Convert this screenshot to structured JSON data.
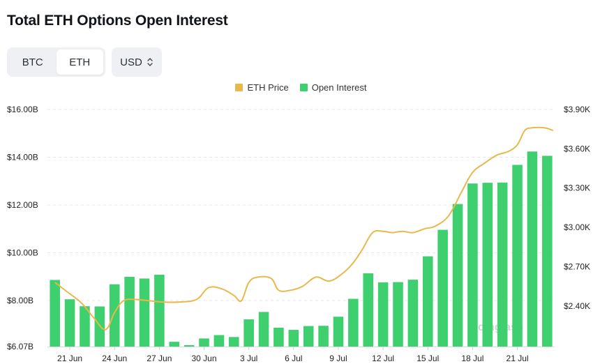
{
  "title": "Total ETH Options Open Interest",
  "asset_toggle": {
    "options": [
      "BTC",
      "ETH"
    ],
    "selected": "ETH"
  },
  "currency_select": {
    "value": "USD"
  },
  "legend": [
    {
      "label": "ETH Price",
      "color": "#e8b94a"
    },
    {
      "label": "Open Interest",
      "color": "#3ecf6e"
    }
  ],
  "watermark": "coinglass",
  "chart_data": {
    "type": "bar",
    "x_tick_labels": [
      "21 Jun",
      "24 Jun",
      "27 Jun",
      "30 Jun",
      "3 Jul",
      "6 Jul",
      "9 Jul",
      "12 Jul",
      "15 Jul",
      "18 Jul",
      "21 Jul"
    ],
    "x_tick_indices": [
      1,
      4,
      7,
      10,
      13,
      16,
      19,
      22,
      25,
      28,
      31
    ],
    "y_left": {
      "ticks": [
        6.07,
        8,
        10,
        12,
        14,
        16
      ],
      "tick_labels": [
        "$6.07B",
        "$8.00B",
        "$10.00B",
        "$12.00B",
        "$14.00B",
        "$16.00B"
      ],
      "range": [
        6.07,
        16
      ]
    },
    "y_right": {
      "ticks": [
        2.4,
        2.7,
        3.0,
        3.3,
        3.6,
        3.9
      ],
      "tick_labels": [
        "$2.40K",
        "$2.70K",
        "$3.00K",
        "$3.30K",
        "$3.60K",
        "$3.90K"
      ],
      "range": [
        2.09,
        3.9
      ]
    },
    "series": [
      {
        "name": "Open Interest",
        "axis": "left",
        "kind": "bar",
        "color": "#3ecf6e",
        "values": [
          8.86,
          8.05,
          7.76,
          7.75,
          8.68,
          8.99,
          8.92,
          9.08,
          6.27,
          6.13,
          6.41,
          6.55,
          6.47,
          7.21,
          7.52,
          6.86,
          6.77,
          6.93,
          6.94,
          7.32,
          8.07,
          9.14,
          8.76,
          8.77,
          8.87,
          9.85,
          10.96,
          12.04,
          12.9,
          12.93,
          12.94,
          13.68,
          14.24,
          14.06
        ]
      },
      {
        "name": "ETH Price",
        "axis": "right",
        "kind": "line",
        "color": "#e8b94a",
        "points": [
          [
            0,
            2.58
          ],
          [
            0.8,
            2.51
          ],
          [
            1.8,
            2.42
          ],
          [
            2.6,
            2.31
          ],
          [
            3.4,
            2.22
          ],
          [
            4,
            2.35
          ],
          [
            4.6,
            2.44
          ],
          [
            5.4,
            2.45
          ],
          [
            6.3,
            2.44
          ],
          [
            7.2,
            2.43
          ],
          [
            8.3,
            2.43
          ],
          [
            9.5,
            2.45
          ],
          [
            10.3,
            2.54
          ],
          [
            11.2,
            2.53
          ],
          [
            12.0,
            2.48
          ],
          [
            12.5,
            2.44
          ],
          [
            13.0,
            2.58
          ],
          [
            13.6,
            2.62
          ],
          [
            14.5,
            2.61
          ],
          [
            15.0,
            2.52
          ],
          [
            15.8,
            2.52
          ],
          [
            16.6,
            2.55
          ],
          [
            17.5,
            2.62
          ],
          [
            18.4,
            2.59
          ],
          [
            19.3,
            2.65
          ],
          [
            20.0,
            2.73
          ],
          [
            20.6,
            2.83
          ],
          [
            21.3,
            2.96
          ],
          [
            22.0,
            2.97
          ],
          [
            22.6,
            2.96
          ],
          [
            23.3,
            2.97
          ],
          [
            24.0,
            2.96
          ],
          [
            24.8,
            2.99
          ],
          [
            25.5,
            3.01
          ],
          [
            26.4,
            3.09
          ],
          [
            27.3,
            3.28
          ],
          [
            28.0,
            3.42
          ],
          [
            28.8,
            3.49
          ],
          [
            29.6,
            3.55
          ],
          [
            30.4,
            3.58
          ],
          [
            31.0,
            3.63
          ],
          [
            31.5,
            3.74
          ],
          [
            32.0,
            3.76
          ],
          [
            32.8,
            3.76
          ],
          [
            33.4,
            3.74
          ]
        ]
      }
    ],
    "grid": "horizontal-dashed"
  }
}
